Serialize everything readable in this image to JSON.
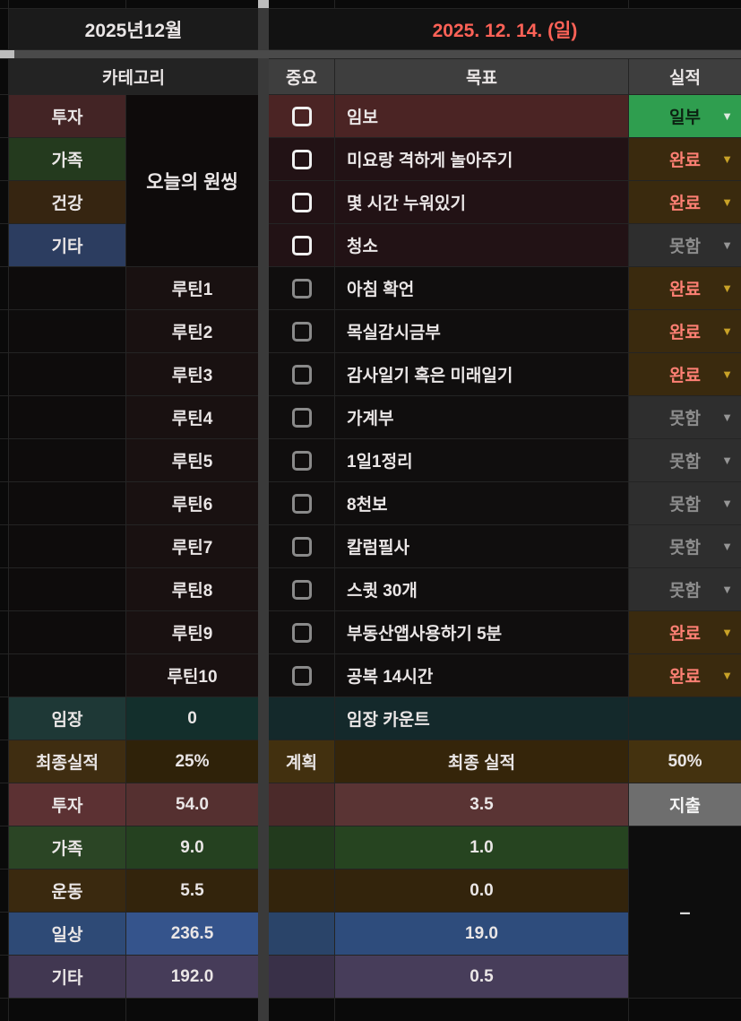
{
  "window": {
    "title_left": "2025년12월",
    "title_right": "2025. 12. 14. (일)"
  },
  "left_pane": {
    "header": "카테고리",
    "one_thing": "오늘의 원씽",
    "categories": [
      "투자",
      "가족",
      "건강",
      "기타"
    ],
    "routines": [
      "루틴1",
      "루틴2",
      "루틴3",
      "루틴4",
      "루틴5",
      "루틴6",
      "루틴7",
      "루틴8",
      "루틴9",
      "루틴10"
    ],
    "summary": [
      {
        "label": "임장",
        "value": "0"
      },
      {
        "label": "최종실적",
        "value": "25%"
      },
      {
        "label": "투자",
        "value": "54.0"
      },
      {
        "label": "가족",
        "value": "9.0"
      },
      {
        "label": "운동",
        "value": "5.5"
      },
      {
        "label": "일상",
        "value": "236.5"
      },
      {
        "label": "기타",
        "value": "192.0"
      }
    ]
  },
  "right_pane": {
    "headers": {
      "important": "중요",
      "goal": "목표",
      "result": "실적"
    },
    "tasks": [
      {
        "goal": "임보",
        "status": "일부"
      },
      {
        "goal": "미요랑 격하게 놀아주기",
        "status": "완료"
      },
      {
        "goal": "몇 시간 누워있기",
        "status": "완료"
      },
      {
        "goal": "청소",
        "status": "못함"
      },
      {
        "goal": "아침 확언",
        "status": "완료"
      },
      {
        "goal": "목실감시금부",
        "status": "완료"
      },
      {
        "goal": "감사일기 혹은 미래일기",
        "status": "완료"
      },
      {
        "goal": "가계부",
        "status": "못함"
      },
      {
        "goal": "1일1정리",
        "status": "못함"
      },
      {
        "goal": "8천보",
        "status": "못함"
      },
      {
        "goal": "칼럼필사",
        "status": "못함"
      },
      {
        "goal": "스큇 30개",
        "status": "못함"
      },
      {
        "goal": "부동산앱사용하기 5분",
        "status": "완료"
      },
      {
        "goal": "공복 14시간",
        "status": "완료"
      }
    ],
    "count_row": {
      "goal": "임장 카운트"
    },
    "plan_row": {
      "label": "계획",
      "goal": "최종 실적",
      "result": "50%"
    },
    "totals": [
      "3.5",
      "1.0",
      "0.0",
      "19.0",
      "0.5"
    ],
    "expense_label": "지출",
    "no_value": "–"
  },
  "colors": {
    "date_accent": "#ff6257",
    "status_done_bg": "#3a2a0e",
    "status_done_text": "#ff8074",
    "status_fail_bg": "#2e2e2e",
    "status_fail_text": "#8d8d8d",
    "status_partial_bg": "#2f9e4f",
    "dropdown_arrow_gold": "#c9a227"
  }
}
